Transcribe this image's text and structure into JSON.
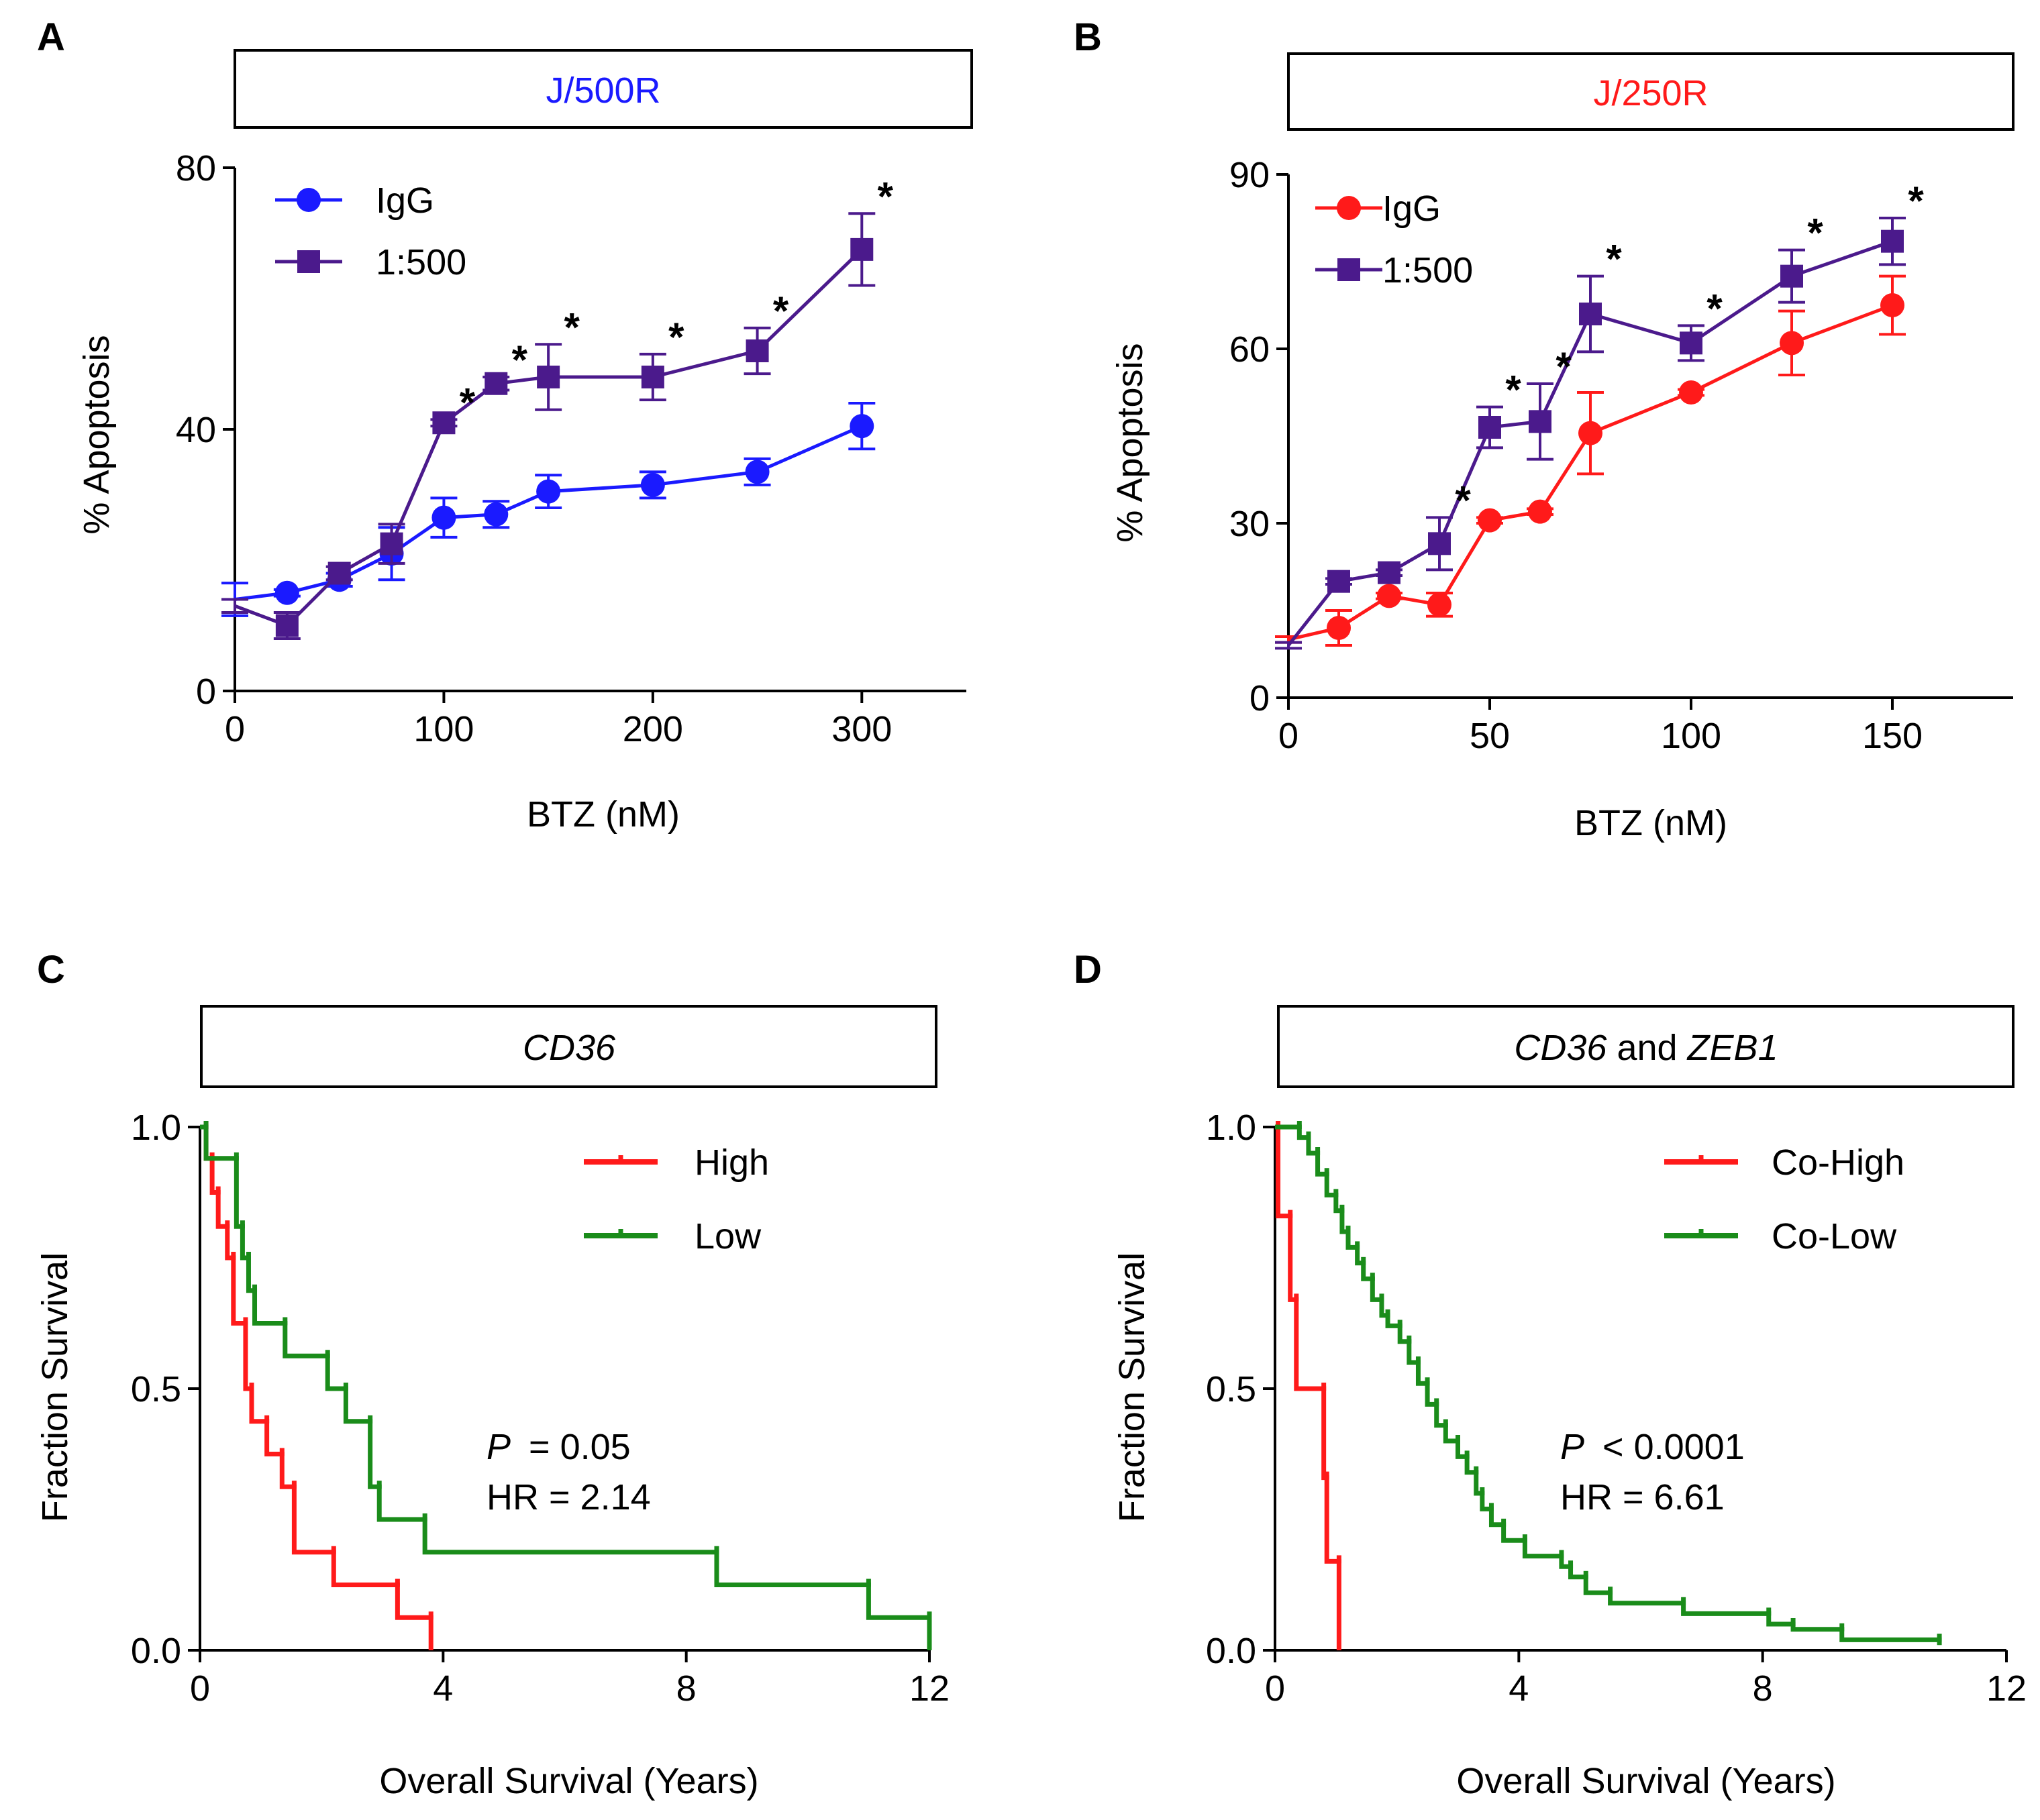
{
  "chart_data": [
    {
      "panel": "A",
      "type": "line",
      "header": "J/500R",
      "header_color": "#1a1aff",
      "xlabel": "BTZ (nM)",
      "ylabel": "% Apoptosis",
      "xlim": [
        0,
        350
      ],
      "ylim": [
        0,
        80
      ],
      "xticks": [
        0,
        100,
        200,
        300
      ],
      "yticks": [
        0,
        40,
        80
      ],
      "series": [
        {
          "name": "IgG",
          "color": "#1a1aff",
          "marker": "circle",
          "x": [
            0,
            25,
            50,
            75,
            100,
            125,
            150,
            200,
            250,
            300
          ],
          "y": [
            14,
            15,
            17,
            21,
            26.5,
            27,
            30.5,
            31.5,
            33.5,
            40.5
          ],
          "err": [
            2.5,
            0.5,
            1,
            4,
            3,
            2,
            2.5,
            2,
            2,
            3.5
          ]
        },
        {
          "name": "1:500",
          "color": "#4b1a8c",
          "marker": "square",
          "x": [
            0,
            25,
            50,
            75,
            100,
            125,
            150,
            200,
            250,
            300
          ],
          "y": [
            13,
            10,
            18,
            22.5,
            41,
            47,
            48,
            48,
            52,
            67.5
          ],
          "err": [
            1,
            2,
            1,
            3,
            0.5,
            1,
            5,
            3.5,
            3.5,
            5.5
          ]
        }
      ],
      "significance": [
        {
          "x": 100,
          "label": "*"
        },
        {
          "x": 125,
          "label": "*"
        },
        {
          "x": 150,
          "label": "*"
        },
        {
          "x": 200,
          "label": "*"
        },
        {
          "x": 250,
          "label": "*"
        },
        {
          "x": 300,
          "label": "*"
        }
      ]
    },
    {
      "panel": "B",
      "type": "line",
      "header": "J/250R",
      "header_color": "#ff1a1a",
      "xlabel": "BTZ (nM)",
      "ylabel": "% Apoptosis",
      "xlim": [
        0,
        180
      ],
      "ylim": [
        0,
        90
      ],
      "xticks": [
        0,
        50,
        100,
        150
      ],
      "yticks": [
        0,
        30,
        60,
        90
      ],
      "series": [
        {
          "name": "IgG",
          "color": "#ff1a1a",
          "marker": "circle",
          "x": [
            0,
            12.5,
            25,
            37.5,
            50,
            62.5,
            75,
            100,
            125,
            150
          ],
          "y": [
            10,
            12,
            17.5,
            16,
            30.5,
            32,
            45.5,
            52.5,
            61,
            67.5
          ],
          "err": [
            0.5,
            3,
            0.5,
            2,
            0.5,
            0.5,
            7,
            0.5,
            5.5,
            5
          ]
        },
        {
          "name": "1:500",
          "color": "#4b1a8c",
          "marker": "square",
          "x": [
            0,
            12.5,
            25,
            37.5,
            50,
            62.5,
            75,
            100,
            125,
            150
          ],
          "y": [
            9,
            20,
            21.5,
            26.5,
            46.5,
            47.5,
            66,
            61,
            72.5,
            78.5
          ],
          "err": [
            0.5,
            0.5,
            0.5,
            4.5,
            3.5,
            6.5,
            6.5,
            3,
            4.5,
            4
          ]
        }
      ],
      "significance": [
        {
          "x": 37.5,
          "label": "*"
        },
        {
          "x": 50,
          "label": "*"
        },
        {
          "x": 62.5,
          "label": "*"
        },
        {
          "x": 75,
          "label": "*"
        },
        {
          "x": 100,
          "label": "*"
        },
        {
          "x": 125,
          "label": "*"
        },
        {
          "x": 150,
          "label": "*"
        }
      ]
    },
    {
      "panel": "C",
      "type": "line",
      "header": "CD36",
      "header_italic": true,
      "xlabel": "Overall Survival (Years)",
      "ylabel": "Fraction Survival",
      "xlim": [
        0,
        12
      ],
      "ylim": [
        0,
        1
      ],
      "xticks": [
        0,
        4,
        8,
        12
      ],
      "yticks": [
        0.0,
        0.5,
        1.0
      ],
      "ytick_labels": [
        "0.0",
        "0.5",
        "1.0"
      ],
      "annotation": {
        "p_label": "P",
        "p_text": "= 0.05",
        "hr_text": "HR = 2.14"
      },
      "series": [
        {
          "name": "High",
          "color": "#ff1a1a",
          "x": [
            0,
            0.1,
            0.2,
            0.3,
            0.45,
            0.55,
            0.75,
            0.85,
            1.1,
            1.35,
            1.55,
            2.2,
            3.25,
            3.8
          ],
          "y": [
            1.0,
            0.94,
            0.875,
            0.81,
            0.75,
            0.625,
            0.5,
            0.4375,
            0.375,
            0.3125,
            0.1875,
            0.125,
            0.0625,
            0.0
          ]
        },
        {
          "name": "Low",
          "color": "#1a8c1a",
          "x": [
            0,
            0.1,
            0.6,
            0.7,
            0.8,
            0.9,
            1.4,
            2.1,
            2.4,
            2.8,
            2.95,
            3.7,
            8.5,
            11.0,
            12.0
          ],
          "y": [
            1.0,
            0.94,
            0.81,
            0.75,
            0.6875,
            0.625,
            0.5625,
            0.5,
            0.4375,
            0.3125,
            0.25,
            0.1875,
            0.125,
            0.0625,
            0.0
          ]
        }
      ]
    },
    {
      "panel": "D",
      "type": "line",
      "header_parts": [
        "CD36",
        " and ",
        "ZEB1"
      ],
      "xlabel": "Overall Survival (Years)",
      "ylabel": "Fraction Survival",
      "xlim": [
        0,
        12
      ],
      "ylim": [
        0,
        1
      ],
      "xticks": [
        0,
        4,
        8,
        12
      ],
      "yticks": [
        0.0,
        0.5,
        1.0
      ],
      "ytick_labels": [
        "0.0",
        "0.5",
        "1.0"
      ],
      "annotation": {
        "p_label": "P",
        "p_text": "< 0.0001",
        "hr_text": "HR = 6.61"
      },
      "series": [
        {
          "name": "Co-High",
          "color": "#ff1a1a",
          "x": [
            0,
            0.05,
            0.25,
            0.35,
            0.8,
            0.85,
            1.05
          ],
          "y": [
            1.0,
            0.83,
            0.67,
            0.5,
            0.33,
            0.17,
            0.0
          ],
          "fill_missing": true
        },
        {
          "name": "Co-Low",
          "color": "#1a8c1a",
          "x": [
            0,
            0.4,
            0.55,
            0.7,
            0.85,
            1.0,
            1.1,
            1.2,
            1.35,
            1.45,
            1.6,
            1.75,
            1.85,
            2.05,
            2.2,
            2.35,
            2.5,
            2.65,
            2.8,
            3.0,
            3.15,
            3.3,
            3.4,
            3.55,
            3.75,
            4.1,
            4.7,
            4.85,
            5.1,
            5.5,
            6.7,
            8.1,
            8.5,
            9.3,
            10.9
          ],
          "y": [
            1.0,
            0.98,
            0.95,
            0.91,
            0.87,
            0.84,
            0.8,
            0.77,
            0.74,
            0.71,
            0.67,
            0.64,
            0.62,
            0.59,
            0.55,
            0.51,
            0.47,
            0.43,
            0.4,
            0.37,
            0.34,
            0.3,
            0.27,
            0.24,
            0.21,
            0.18,
            0.16,
            0.14,
            0.11,
            0.09,
            0.07,
            0.05,
            0.04,
            0.02,
            0.01
          ]
        }
      ]
    }
  ],
  "panel_letters": [
    "A",
    "B",
    "C",
    "D"
  ],
  "stroke_color": "#000000"
}
